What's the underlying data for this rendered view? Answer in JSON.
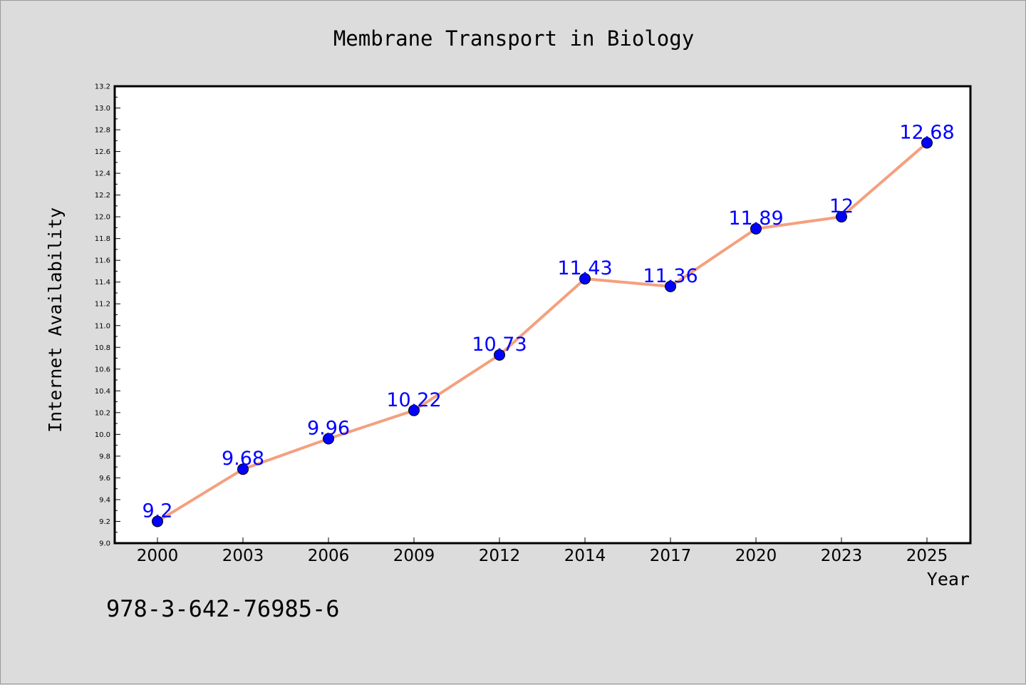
{
  "chart_data": {
    "type": "line",
    "title": "Membrane Transport in Biology",
    "xlabel": "Year",
    "ylabel": "Internet Availability",
    "categories": [
      "2000",
      "2003",
      "2006",
      "2009",
      "2012",
      "2014",
      "2017",
      "2020",
      "2023",
      "2025"
    ],
    "series": [
      {
        "values": [
          9.2,
          9.68,
          9.96,
          10.22,
          10.73,
          11.43,
          11.36,
          11.89,
          12,
          12.68
        ],
        "data_labels": [
          "9.2",
          "9.68",
          "9.96",
          "10.22",
          "10.73",
          "11.43",
          "11.36",
          "11.89",
          "12",
          "12.68"
        ],
        "line_color": "#f4a07f",
        "marker_color": "#0000ff"
      }
    ],
    "ylim": [
      9.0,
      13.2
    ],
    "yticks": [
      "9.0",
      "9.2",
      "9.4",
      "9.6",
      "9.8",
      "10.0",
      "10.2",
      "10.4",
      "10.6",
      "10.8",
      "11.0",
      "11.2",
      "11.4",
      "11.6",
      "11.8",
      "12.0",
      "12.2",
      "12.4",
      "12.6",
      "12.8",
      "13.0",
      "13.2"
    ],
    "grid": false,
    "legend": "none",
    "annotation": "978-3-642-76985-6"
  },
  "colors": {
    "background": "#dcdcdc",
    "plot_background": "#ffffff",
    "line": "#f4a07f",
    "marker": "#0000ff",
    "data_label": "#0000ff"
  }
}
